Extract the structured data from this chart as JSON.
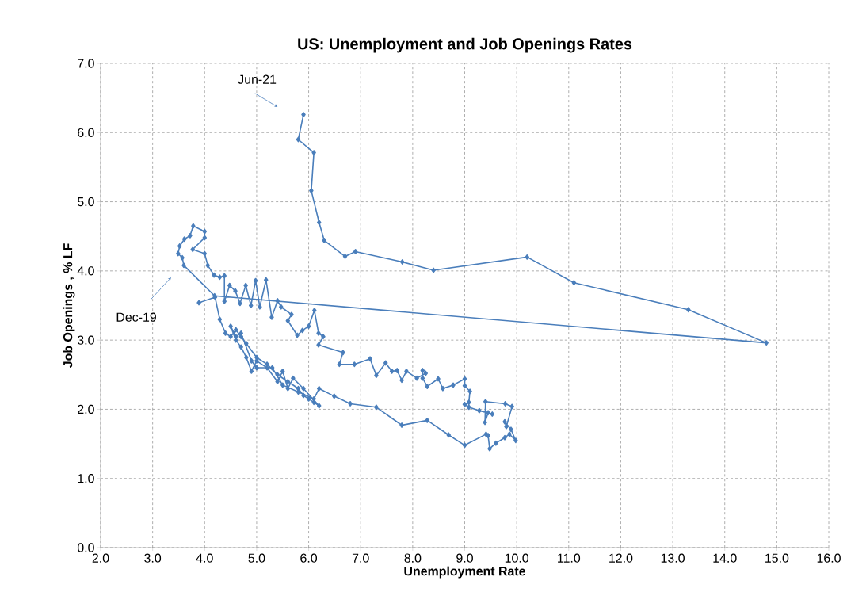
{
  "chart_data": {
    "type": "line",
    "title": "US: Unemployment and Job Openings Rates",
    "xlabel": "Unemployment Rate",
    "ylabel": "Job Openings , % LF",
    "xlim": [
      2,
      16
    ],
    "ylim": [
      0,
      7
    ],
    "xticks": [
      {
        "value": 2,
        "label": "2.0"
      },
      {
        "value": 3,
        "label": "3.0"
      },
      {
        "value": 4,
        "label": "4.0"
      },
      {
        "value": 5,
        "label": "5.0"
      },
      {
        "value": 6,
        "label": "6.0"
      },
      {
        "value": 7,
        "label": "7.0"
      },
      {
        "value": 8,
        "label": "8.0"
      },
      {
        "value": 9,
        "label": "9.0"
      },
      {
        "value": 10,
        "label": "10.0"
      },
      {
        "value": 11,
        "label": "11.0"
      },
      {
        "value": 12,
        "label": "12.0"
      },
      {
        "value": 13,
        "label": "13.0"
      },
      {
        "value": 14,
        "label": "14.0"
      },
      {
        "value": 15,
        "label": "15.0"
      },
      {
        "value": 16,
        "label": "16.0"
      }
    ],
    "yticks": [
      {
        "value": 0,
        "label": "0.0"
      },
      {
        "value": 1,
        "label": "1.0"
      },
      {
        "value": 2,
        "label": "2.0"
      },
      {
        "value": 3,
        "label": "3.0"
      },
      {
        "value": 4,
        "label": "4.0"
      },
      {
        "value": 5,
        "label": "5.0"
      },
      {
        "value": 6,
        "label": "6.0"
      },
      {
        "value": 7,
        "label": "7.0"
      }
    ],
    "grid": true,
    "marker": "diamond",
    "line_style": "solid",
    "series": [
      {
        "color": "#4a7ebb",
        "x": [
          3.89,
          4.2,
          4.29,
          4.4,
          4.5,
          4.6,
          4.7,
          4.8,
          5.0,
          5.2,
          5.4,
          5.6,
          5.8,
          5.9,
          6.0,
          6.1,
          6.2,
          5.9,
          5.7,
          5.6,
          5.5,
          5.4,
          5.2,
          5.0,
          4.9,
          4.8,
          4.7,
          4.6,
          4.5,
          4.6,
          4.7,
          4.9,
          5.0,
          5.3,
          5.5,
          5.8,
          6.1,
          6.2,
          6.49,
          6.8,
          7.3,
          7.79,
          8.28,
          8.69,
          9.0,
          9.41,
          9.45,
          9.48,
          9.6,
          9.77,
          9.86,
          9.98,
          9.89,
          9.77,
          9.8,
          9.91,
          9.78,
          9.4,
          9.39,
          9.45,
          9.53,
          9.28,
          9.08,
          9.0,
          9.08,
          9.1,
          9.0,
          9.0,
          8.78,
          8.58,
          8.49,
          8.28,
          8.19,
          8.19,
          8.25,
          8.08,
          7.88,
          7.79,
          7.7,
          7.6,
          7.48,
          7.3,
          7.18,
          6.88,
          6.59,
          6.66,
          6.19,
          6.28,
          6.19,
          6.11,
          6.0,
          5.88,
          5.78,
          5.6,
          5.67,
          5.47,
          5.4,
          5.29,
          5.18,
          5.06,
          4.98,
          4.89,
          4.79,
          4.68,
          4.59,
          4.48,
          4.38,
          4.38,
          4.29,
          4.18,
          4.06,
          4.0,
          3.77,
          4.0,
          4.0,
          3.78,
          3.72,
          3.61,
          3.52,
          3.49,
          3.57,
          3.6,
          4.19,
          14.8,
          13.3,
          11.1,
          10.2,
          8.4,
          7.8,
          6.9,
          6.7,
          6.3,
          6.2,
          6.05,
          6.1,
          5.8,
          5.9
        ],
        "values": [
          3.54,
          3.62,
          3.3,
          3.1,
          3.05,
          3.15,
          3.05,
          2.95,
          2.75,
          2.65,
          2.5,
          2.4,
          2.3,
          2.2,
          2.15,
          2.1,
          2.05,
          2.3,
          2.45,
          2.3,
          2.55,
          2.4,
          2.6,
          2.7,
          2.55,
          2.75,
          2.9,
          3.0,
          3.2,
          3.05,
          3.1,
          2.7,
          2.6,
          2.6,
          2.35,
          2.25,
          2.15,
          2.3,
          2.19,
          2.08,
          2.03,
          1.77,
          1.84,
          1.63,
          1.48,
          1.64,
          1.62,
          1.43,
          1.51,
          1.59,
          1.64,
          1.55,
          1.71,
          1.82,
          1.75,
          2.04,
          2.08,
          2.11,
          1.81,
          1.95,
          1.93,
          1.98,
          2.03,
          2.07,
          2.1,
          2.26,
          2.34,
          2.44,
          2.35,
          2.3,
          2.44,
          2.33,
          2.45,
          2.56,
          2.52,
          2.45,
          2.55,
          2.42,
          2.56,
          2.55,
          2.67,
          2.49,
          2.73,
          2.65,
          2.65,
          2.82,
          2.93,
          3.05,
          3.1,
          3.43,
          3.2,
          3.14,
          3.07,
          3.28,
          3.37,
          3.48,
          3.57,
          3.33,
          3.87,
          3.48,
          3.86,
          3.5,
          3.79,
          3.53,
          3.71,
          3.79,
          3.56,
          3.93,
          3.91,
          3.94,
          4.08,
          4.25,
          4.31,
          4.48,
          4.57,
          4.65,
          4.51,
          4.46,
          4.36,
          4.25,
          4.19,
          4.08,
          3.64,
          2.96,
          3.44,
          3.83,
          4.2,
          4.01,
          4.13,
          4.28,
          4.21,
          4.44,
          4.7,
          5.16,
          5.71,
          5.9,
          6.26
        ]
      }
    ],
    "annotations": [
      "Jun-21",
      "Dec-19"
    ]
  }
}
